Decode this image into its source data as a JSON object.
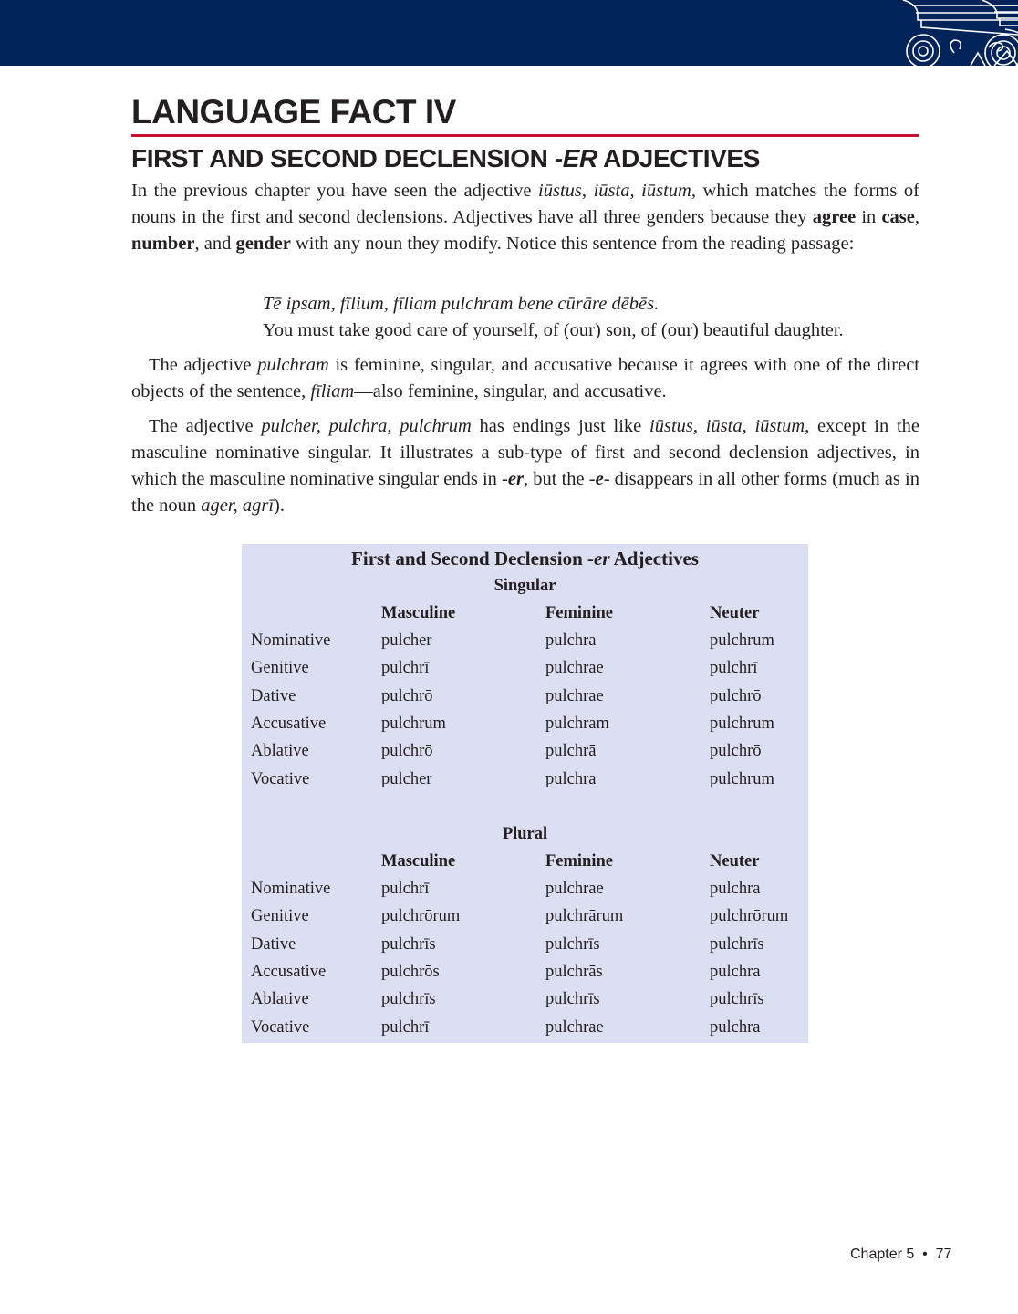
{
  "header": {
    "colors": {
      "banner": "#00235a",
      "rule": "#c8102e",
      "table_bg": "#dcdef2"
    },
    "ornament_icon": "ionic-column-capital"
  },
  "title": "LANGUAGE FACT IV",
  "subtitle": {
    "before": "FIRST AND SECOND DECLENSION ",
    "italic": "-ER",
    "after": " ADJECTIVES"
  },
  "para1": {
    "t1": "In the previous chapter you have seen the adjective ",
    "i1": "iūstus, iūsta, iūstum,",
    "t2": " which matches the forms of nouns in the first and second declensions. Adjectives have all three genders because they ",
    "b1": "agree",
    "t3": " in ",
    "b2": "case",
    "t4": ", ",
    "b3": "number",
    "t5": ", and ",
    "b4": "gender",
    "t6": " with any noun they modify. Notice this sentence from the reading passage:"
  },
  "quote": {
    "latin": "Tē ipsam, fīlium, fīliam pulchram bene cūrāre dēbēs.",
    "english": "You must take good care of yourself, of (our) son, of (our) beautiful daughter."
  },
  "para2": {
    "t1": "The adjective ",
    "i1": "pulchram",
    "t2": " is feminine, singular, and accusative because it agrees with one of the direct objects of the sentence, ",
    "i2": "fīliam",
    "t3": "—also feminine, singular, and accusative."
  },
  "para3": {
    "t1": "The adjective ",
    "i1": "pulcher, pulchra, pulchrum",
    "t2": " has endings just like ",
    "i2": "iūstus, iūsta, iūstum",
    "t3": ", except in the masculine nominative singular. It illustrates a sub-type of first and second declension adjectives, in which the masculine nominative singular ends in -",
    "b1": "er",
    "t4": ", but the -",
    "b2": "e",
    "t5": "- disappears in all other forms (much as in the noun ",
    "i3": "ager, agrī",
    "t6": ")."
  },
  "table": {
    "title_before": "First and Second Declension ",
    "title_italic": "-er",
    "title_after": " Adjectives",
    "singular": {
      "label": "Singular",
      "headers": [
        "Masculine",
        "Feminine",
        "Neuter"
      ],
      "rows": [
        [
          "Nominative",
          "pulcher",
          "pulchra",
          "pulchrum"
        ],
        [
          "Genitive",
          "pulchrī",
          "pulchrae",
          "pulchrī"
        ],
        [
          "Dative",
          "pulchrō",
          "pulchrae",
          "pulchrō"
        ],
        [
          "Accusative",
          "pulchrum",
          "pulchram",
          "pulchrum"
        ],
        [
          "Ablative",
          "pulchrō",
          "pulchrā",
          "pulchrō"
        ],
        [
          "Vocative",
          "pulcher",
          "pulchra",
          "pulchrum"
        ]
      ]
    },
    "plural": {
      "label": "Plural",
      "headers": [
        "Masculine",
        "Feminine",
        "Neuter"
      ],
      "rows": [
        [
          "Nominative",
          "pulchrī",
          "pulchrae",
          "pulchra"
        ],
        [
          "Genitive",
          "pulchrōrum",
          "pulchrārum",
          "pulchrōrum"
        ],
        [
          "Dative",
          "pulchrīs",
          "pulchrīs",
          "pulchrīs"
        ],
        [
          "Accusative",
          "pulchrōs",
          "pulchrās",
          "pulchra"
        ],
        [
          "Ablative",
          "pulchrīs",
          "pulchrīs",
          "pulchrīs"
        ],
        [
          "Vocative",
          "pulchrī",
          "pulchrae",
          "pulchra"
        ]
      ]
    }
  },
  "footer": {
    "chapter": "Chapter 5",
    "separator": "•",
    "page": "77"
  }
}
